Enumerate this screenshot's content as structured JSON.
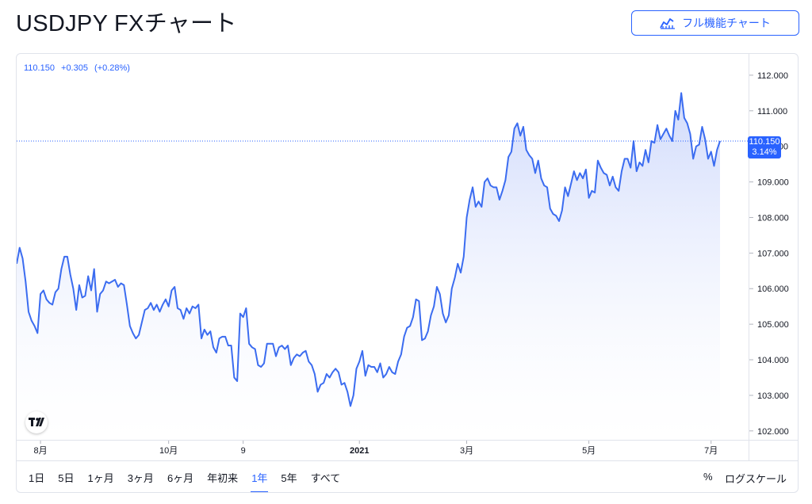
{
  "page": {
    "title": "USDJPY FXチャート",
    "full_chart_label": "フル機能チャート",
    "full_chart_icon": "chart-line-icon"
  },
  "colors": {
    "accent": "#2962ff",
    "line": "#3b6cf0",
    "area_top": "#c8d4fb",
    "area_bottom": "#ffffff",
    "grid_text": "#131722",
    "price_label_bg": "#2962ff"
  },
  "legend": {
    "price": "110.150",
    "change": "+0.305",
    "change_pct": "(+0.28%)"
  },
  "price_label": {
    "value": "110.150",
    "pct": "3.14%"
  },
  "bottom_bar": {
    "ranges": [
      "1日",
      "5日",
      "1ヶ月",
      "3ヶ月",
      "6ヶ月",
      "年初来",
      "1年",
      "5年",
      "すべて"
    ],
    "active_range": "1年",
    "percent_label": "%",
    "log_scale_label": "ログスケール"
  },
  "chart_data": {
    "type": "area",
    "title": "",
    "xlabel": "",
    "ylabel": "",
    "ylim": [
      101.75,
      112.6
    ],
    "y_ticks": [
      "102.000",
      "103.000",
      "104.000",
      "105.000",
      "106.000",
      "107.000",
      "108.000",
      "109.000",
      "110.000",
      "111.000",
      "112.000"
    ],
    "x_ticks": [
      {
        "label": "8月",
        "x": 8
      },
      {
        "label": "10月",
        "x": 51
      },
      {
        "label": "9",
        "x": 76
      },
      {
        "label": "2021",
        "x": 115
      },
      {
        "label": "3月",
        "x": 151
      },
      {
        "label": "5月",
        "x": 192
      },
      {
        "label": "7月",
        "x": 233
      }
    ],
    "last_value": 110.15,
    "series": [
      {
        "values": [
          106.7,
          107.15,
          106.85,
          106.2,
          105.35,
          105.1,
          104.95,
          104.75,
          105.85,
          105.95,
          105.7,
          105.6,
          105.55,
          105.9,
          106.0,
          106.55,
          106.9,
          106.9,
          106.4,
          106.0,
          105.4,
          106.1,
          105.75,
          105.8,
          106.35,
          105.95,
          106.55,
          105.35,
          105.85,
          105.95,
          106.2,
          106.15,
          106.2,
          106.25,
          106.05,
          106.15,
          106.1,
          105.55,
          104.95,
          104.75,
          104.6,
          104.7,
          105.05,
          105.4,
          105.45,
          105.6,
          105.4,
          105.55,
          105.35,
          105.55,
          105.7,
          105.5,
          105.95,
          106.05,
          105.45,
          105.4,
          105.15,
          105.45,
          105.3,
          105.5,
          105.45,
          105.55,
          104.6,
          104.85,
          104.7,
          104.8,
          104.35,
          104.2,
          104.6,
          104.65,
          104.65,
          104.4,
          104.4,
          103.5,
          103.4,
          105.3,
          105.2,
          105.45,
          104.45,
          104.35,
          104.3,
          103.85,
          103.8,
          103.9,
          104.45,
          104.45,
          104.45,
          104.1,
          104.35,
          104.4,
          104.3,
          104.4,
          103.85,
          104.05,
          104.15,
          104.1,
          104.2,
          104.25,
          103.95,
          103.85,
          103.6,
          103.1,
          103.3,
          103.35,
          103.6,
          103.5,
          103.65,
          103.75,
          103.65,
          103.3,
          103.35,
          103.1,
          102.7,
          103.0,
          103.75,
          103.95,
          104.25,
          103.55,
          103.85,
          103.8,
          103.8,
          103.65,
          103.9,
          103.5,
          103.6,
          103.8,
          103.65,
          103.6,
          103.95,
          104.15,
          104.65,
          104.9,
          104.95,
          105.2,
          105.7,
          105.65,
          104.55,
          104.6,
          104.8,
          105.25,
          105.5,
          106.05,
          105.85,
          105.3,
          105.05,
          105.25,
          106.0,
          106.3,
          106.7,
          106.45,
          106.9,
          108.0,
          108.5,
          108.85,
          108.3,
          108.45,
          108.3,
          109.0,
          109.1,
          108.9,
          108.85,
          108.85,
          108.5,
          108.75,
          109.05,
          109.7,
          109.85,
          110.5,
          110.65,
          110.3,
          110.55,
          109.9,
          109.75,
          109.65,
          109.25,
          109.6,
          109.1,
          108.9,
          108.85,
          108.25,
          108.1,
          108.05,
          107.9,
          108.2,
          108.85,
          108.6,
          108.95,
          109.3,
          109.05,
          109.25,
          109.1,
          109.35,
          108.55,
          108.75,
          108.7,
          109.6,
          109.4,
          109.25,
          109.2,
          108.9,
          109.15,
          108.85,
          108.75,
          109.3,
          109.65,
          109.65,
          109.4,
          110.15,
          109.3,
          109.55,
          109.45,
          109.9,
          109.55,
          110.15,
          110.1,
          110.6,
          110.2,
          110.35,
          110.5,
          110.3,
          110.15,
          111.0,
          110.75,
          111.5,
          110.8,
          110.65,
          110.35,
          109.65,
          110.0,
          110.05,
          110.55,
          110.2,
          109.65,
          109.85,
          109.45,
          109.9,
          110.15
        ]
      }
    ]
  }
}
